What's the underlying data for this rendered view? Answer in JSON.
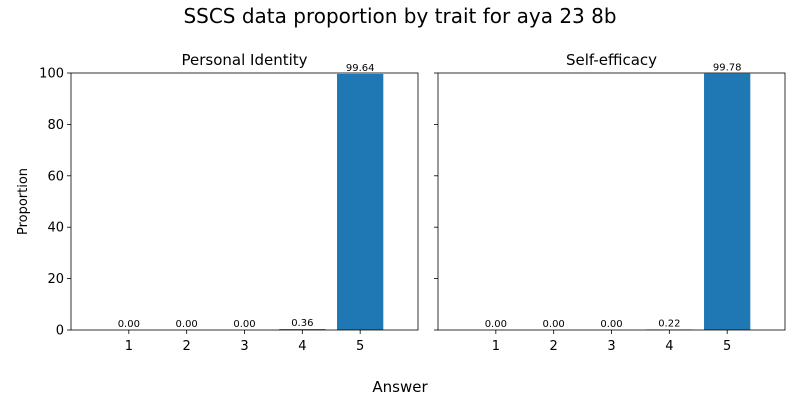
{
  "figure": {
    "title": "SSCS data proportion by trait for aya 23 8b",
    "xlabel": "Answer",
    "ylabel": "Proportion"
  },
  "chart_data": [
    {
      "type": "bar",
      "title": "Personal Identity",
      "categories": [
        "1",
        "2",
        "3",
        "4",
        "5"
      ],
      "values": [
        0.0,
        0.0,
        0.0,
        0.36,
        99.64
      ],
      "value_labels": [
        "0.00",
        "0.00",
        "0.00",
        "0.36",
        "99.64"
      ],
      "xlabel": "Answer",
      "ylabel": "Proportion",
      "ylim": [
        0,
        100
      ],
      "yticks": [
        "0",
        "20",
        "40",
        "60",
        "80",
        "100"
      ],
      "bar_color": "#1f77b4",
      "grid": false
    },
    {
      "type": "bar",
      "title": "Self-efficacy",
      "categories": [
        "1",
        "2",
        "3",
        "4",
        "5"
      ],
      "values": [
        0.0,
        0.0,
        0.0,
        0.22,
        99.78
      ],
      "value_labels": [
        "0.00",
        "0.00",
        "0.00",
        "0.22",
        "99.78"
      ],
      "xlabel": "Answer",
      "ylabel": "",
      "ylim": [
        0,
        100
      ],
      "yticks": [
        "0",
        "20",
        "40",
        "60",
        "80",
        "100"
      ],
      "bar_color": "#1f77b4",
      "grid": false
    }
  ]
}
